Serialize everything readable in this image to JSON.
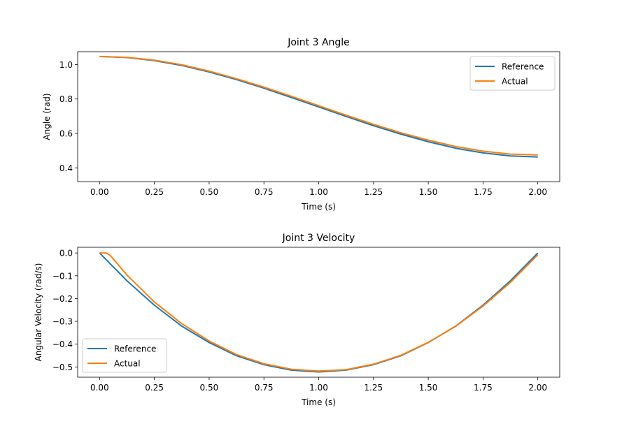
{
  "chart_data": [
    {
      "type": "line",
      "title": "Joint 3 Angle",
      "xlabel": "Time (s)",
      "ylabel": "Angle (rad)",
      "xlim": [
        -0.1,
        2.1
      ],
      "ylim": [
        0.32,
        1.075
      ],
      "xticks": [
        0.0,
        0.25,
        0.5,
        0.75,
        1.0,
        1.25,
        1.5,
        1.75,
        2.0
      ],
      "xtick_labels": [
        "0.00",
        "0.25",
        "0.50",
        "0.75",
        "1.00",
        "1.25",
        "1.50",
        "1.75",
        "2.00"
      ],
      "yticks": [
        0.4,
        0.6,
        0.8,
        1.0
      ],
      "ytick_labels": [
        "0.4",
        "0.6",
        "0.8",
        "1.0"
      ],
      "grid": false,
      "legend_position": "top-right",
      "series": [
        {
          "name": "Reference",
          "color": "#1f77b4",
          "x": [
            0.0,
            0.125,
            0.25,
            0.375,
            0.5,
            0.625,
            0.75,
            0.875,
            1.0,
            1.125,
            1.25,
            1.375,
            1.5,
            1.625,
            1.75,
            1.875,
            2.0
          ],
          "y": [
            1.047,
            1.041,
            1.023,
            0.995,
            0.957,
            0.913,
            0.863,
            0.809,
            0.754,
            0.699,
            0.645,
            0.596,
            0.552,
            0.514,
            0.487,
            0.469,
            0.463
          ]
        },
        {
          "name": "Actual",
          "color": "#ff7f0e",
          "x": [
            0.0,
            0.125,
            0.25,
            0.375,
            0.5,
            0.625,
            0.75,
            0.875,
            1.0,
            1.125,
            1.25,
            1.375,
            1.5,
            1.625,
            1.75,
            1.875,
            2.0
          ],
          "y": [
            1.047,
            1.042,
            1.026,
            0.999,
            0.962,
            0.918,
            0.869,
            0.816,
            0.761,
            0.706,
            0.653,
            0.604,
            0.561,
            0.524,
            0.497,
            0.48,
            0.475
          ]
        }
      ]
    },
    {
      "type": "line",
      "title": "Joint 3 Velocity",
      "xlabel": "Time (s)",
      "ylabel": "Angular Velocity (rad/s)",
      "xlim": [
        -0.1,
        2.1
      ],
      "ylim": [
        -0.545,
        0.025
      ],
      "xticks": [
        0.0,
        0.25,
        0.5,
        0.75,
        1.0,
        1.25,
        1.5,
        1.75,
        2.0
      ],
      "xtick_labels": [
        "0.00",
        "0.25",
        "0.50",
        "0.75",
        "1.00",
        "1.25",
        "1.50",
        "1.75",
        "2.00"
      ],
      "yticks": [
        -0.5,
        -0.4,
        -0.3,
        -0.2,
        -0.1,
        0.0
      ],
      "ytick_labels": [
        "−0.5",
        "−0.4",
        "−0.3",
        "−0.2",
        "−0.1",
        "0.0"
      ],
      "grid": false,
      "legend_position": "bottom-left",
      "series": [
        {
          "name": "Reference",
          "color": "#1f77b4",
          "x": [
            0.0,
            0.125,
            0.25,
            0.375,
            0.5,
            0.625,
            0.75,
            0.875,
            1.0,
            1.125,
            1.25,
            1.375,
            1.5,
            1.625,
            1.75,
            1.875,
            2.0
          ],
          "y": [
            0.0,
            -0.122,
            -0.229,
            -0.321,
            -0.393,
            -0.451,
            -0.49,
            -0.514,
            -0.522,
            -0.514,
            -0.49,
            -0.451,
            -0.393,
            -0.321,
            -0.229,
            -0.122,
            0.0
          ]
        },
        {
          "name": "Actual",
          "color": "#ff7f0e",
          "x": [
            0.0,
            0.03,
            0.05,
            0.125,
            0.25,
            0.375,
            0.5,
            0.625,
            0.75,
            0.875,
            1.0,
            1.125,
            1.25,
            1.375,
            1.5,
            1.625,
            1.75,
            1.875,
            2.0
          ],
          "y": [
            0.0,
            0.0,
            -0.012,
            -0.097,
            -0.215,
            -0.31,
            -0.386,
            -0.446,
            -0.486,
            -0.51,
            -0.518,
            -0.512,
            -0.488,
            -0.449,
            -0.392,
            -0.322,
            -0.233,
            -0.129,
            -0.008
          ]
        }
      ]
    }
  ]
}
